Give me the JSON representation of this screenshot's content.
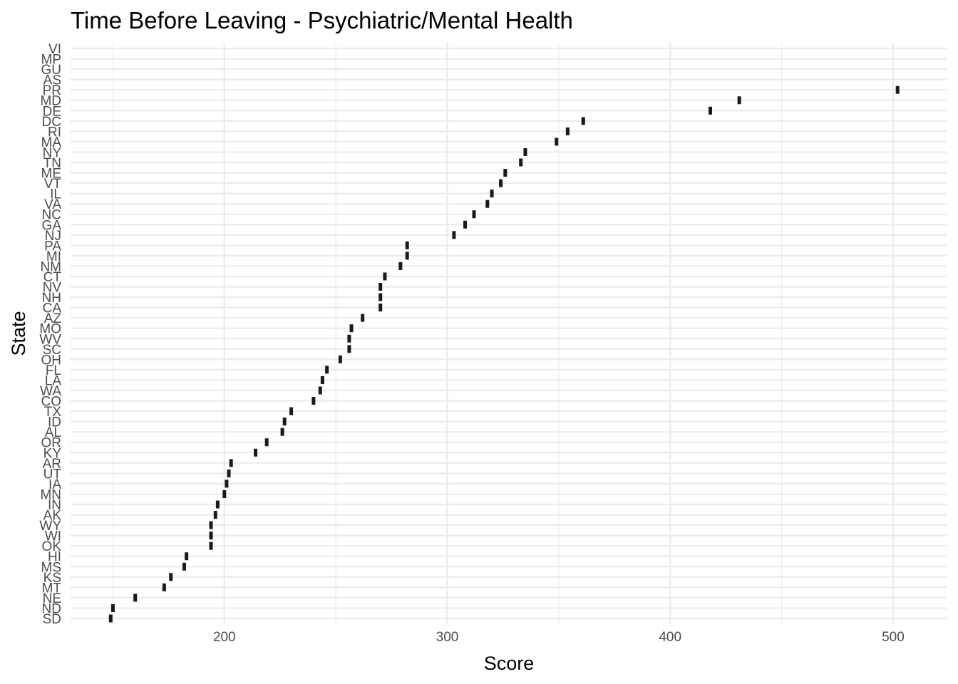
{
  "chart_data": {
    "type": "scatter",
    "title": "Time Before Leaving - Psychiatric/Mental Health",
    "xlabel": "Score",
    "ylabel": "State",
    "xlim": [
      131,
      524
    ],
    "x_ticks": [
      200,
      300,
      400,
      500
    ],
    "x_minor_ticks": [
      150,
      250,
      350,
      450
    ],
    "grid": true,
    "legend": "none",
    "mark_color": "#1a1a1a",
    "categories": [
      "SD",
      "ND",
      "NE",
      "MT",
      "KS",
      "MS",
      "HI",
      "OK",
      "WI",
      "WY",
      "AK",
      "IN",
      "MN",
      "IA",
      "UT",
      "AR",
      "KY",
      "OR",
      "AL",
      "ID",
      "TX",
      "CO",
      "WA",
      "LA",
      "FL",
      "OH",
      "SC",
      "WV",
      "MO",
      "AZ",
      "CA",
      "NH",
      "NV",
      "CT",
      "NM",
      "MI",
      "PA",
      "NJ",
      "GA",
      "NC",
      "VA",
      "IL",
      "VT",
      "ME",
      "TN",
      "NY",
      "MA",
      "RI",
      "DC",
      "DE",
      "MD",
      "PR",
      "AS",
      "GU",
      "MP",
      "VI"
    ],
    "values": [
      149,
      150,
      160,
      173,
      176,
      182,
      183,
      194,
      194,
      194,
      196,
      197,
      200,
      201,
      202,
      203,
      214,
      219,
      226,
      227,
      230,
      240,
      243,
      244,
      246,
      252,
      256,
      256,
      257,
      262,
      270,
      270,
      270,
      272,
      279,
      282,
      282,
      303,
      308,
      312,
      318,
      320,
      324,
      326,
      333,
      335,
      349,
      354,
      361,
      418,
      431,
      502,
      null,
      null,
      null,
      null
    ]
  }
}
